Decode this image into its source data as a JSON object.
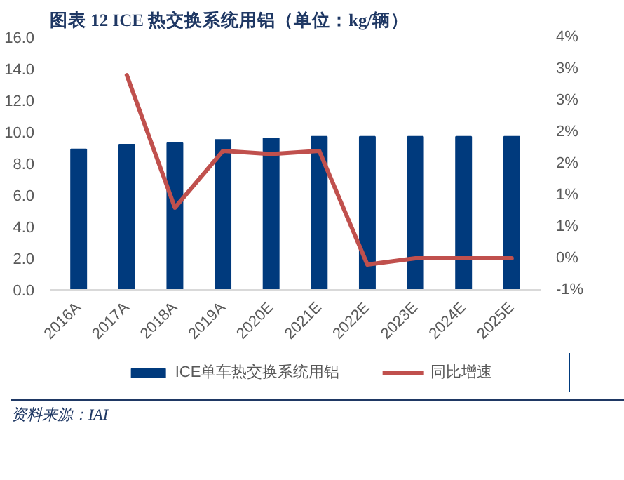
{
  "chart_data": {
    "type": "bar",
    "title": "图表 12   ICE 热交换系统用铝（单位：kg/辆）",
    "categories": [
      "2016A",
      "2017A",
      "2018A",
      "2019A",
      "2020E",
      "2021E",
      "2022E",
      "2023E",
      "2024E",
      "2025E"
    ],
    "series": [
      {
        "name": "ICE单车热交换系统用铝",
        "color": "#003a7d",
        "values": [
          8.9,
          9.2,
          9.3,
          9.5,
          9.6,
          9.7,
          9.7,
          9.7,
          9.7,
          9.7
        ]
      },
      {
        "name": "同比增速",
        "type": "line",
        "axis": "y2",
        "color": "#c0504d",
        "values": [
          null,
          2.9,
          0.8,
          1.7,
          1.65,
          1.7,
          -0.1,
          0.0,
          0.0,
          0.0
        ]
      }
    ],
    "ylim": [
      0,
      16
    ],
    "yticks": [
      {
        "value": 0,
        "label": "0.0"
      },
      {
        "value": 2,
        "label": "2.0"
      },
      {
        "value": 4,
        "label": "4.0"
      },
      {
        "value": 6,
        "label": "6.0"
      },
      {
        "value": 8,
        "label": "8.0"
      },
      {
        "value": 10,
        "label": "10.0"
      },
      {
        "value": 12,
        "label": "12.0"
      },
      {
        "value": 14,
        "label": "14.0"
      },
      {
        "value": 16,
        "label": "16.0"
      }
    ],
    "y2lim": [
      -0.5,
      3.5
    ],
    "y2ticks": [
      {
        "value": -0.5,
        "label": "-1%"
      },
      {
        "value": 0,
        "label": "0%"
      },
      {
        "value": 0.5,
        "label": "1%"
      },
      {
        "value": 1,
        "label": "1%"
      },
      {
        "value": 1.5,
        "label": "2%"
      },
      {
        "value": 2,
        "label": "2%"
      },
      {
        "value": 2.5,
        "label": "3%"
      },
      {
        "value": 3,
        "label": "3%"
      },
      {
        "value": 3.5,
        "label": "4%"
      }
    ],
    "grid": false,
    "legend": "bottom",
    "annotations": [
      "资料来源：IAI"
    ]
  }
}
